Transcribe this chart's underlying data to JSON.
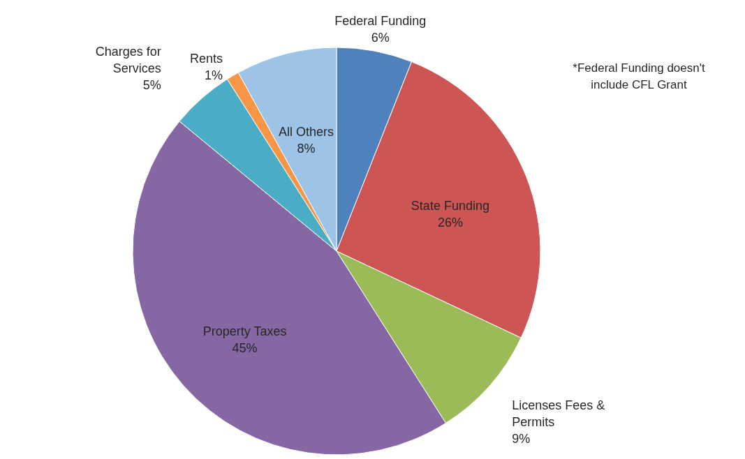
{
  "chart_data": {
    "type": "pie",
    "categories": [
      "Federal Funding",
      "State Funding",
      "Licenses Fees & Permits",
      "Property Taxes",
      "Charges for Services",
      "Rents",
      "All Others"
    ],
    "values": [
      6,
      26,
      9,
      45,
      5,
      1,
      8
    ],
    "value_labels": [
      "6%",
      "26%",
      "9%",
      "45%",
      "5%",
      "1%",
      "8%"
    ],
    "colors": [
      "#4f81bd",
      "#cd5553",
      "#9bbb59",
      "#8467a3",
      "#4bacc6",
      "#f79646",
      "#9dc3e6"
    ],
    "annotations": [
      "*Federal Funding doesn't include CFL Grant"
    ]
  }
}
